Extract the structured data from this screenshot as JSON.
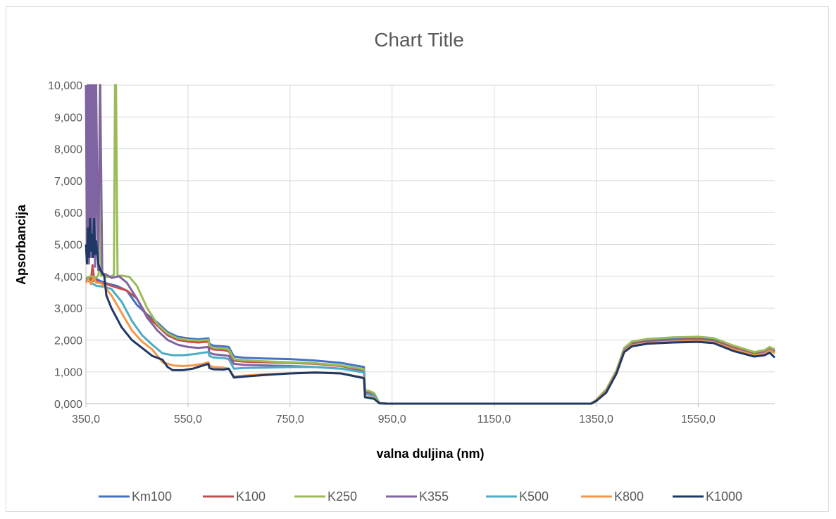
{
  "chart_data": {
    "type": "line",
    "title": "Chart Title",
    "xlabel": "valna duljina (nm)",
    "ylabel": "Apsorbancija",
    "xlim": [
      350,
      1700
    ],
    "ylim": [
      0,
      10
    ],
    "x_ticks": [
      350,
      550,
      750,
      950,
      1150,
      1350,
      1550
    ],
    "x_tick_labels": [
      "350,0",
      "550,0",
      "750,0",
      "950,0",
      "1150,0",
      "1350,0",
      "1550,0"
    ],
    "y_ticks": [
      0,
      1,
      2,
      3,
      4,
      5,
      6,
      7,
      8,
      9,
      10
    ],
    "y_tick_labels": [
      "0,000",
      "1,000",
      "2,000",
      "3,000",
      "4,000",
      "5,000",
      "6,000",
      "7,000",
      "8,000",
      "9,000",
      "10,000"
    ],
    "grid": "vertical and horizontal",
    "legend_position": "bottom",
    "series": [
      {
        "name": "Km100",
        "color": "#4472c4",
        "x": [
          350,
          355,
          360,
          365,
          370,
          378,
          390,
          410,
          430,
          450,
          470,
          490,
          510,
          530,
          550,
          570,
          590,
          592,
          600,
          620,
          630,
          640,
          660,
          700,
          750,
          800,
          850,
          895,
          897,
          905,
          915,
          925,
          940,
          1100,
          1340,
          1350,
          1370,
          1390,
          1405,
          1420,
          1450,
          1500,
          1550,
          1580,
          1620,
          1660,
          1680,
          1690,
          1700
        ],
        "y": [
          3.9,
          3.95,
          3.9,
          3.85,
          3.92,
          3.85,
          3.78,
          3.7,
          3.55,
          3.1,
          2.8,
          2.55,
          2.25,
          2.1,
          2.05,
          2.02,
          2.05,
          1.88,
          1.82,
          1.8,
          1.78,
          1.48,
          1.44,
          1.42,
          1.4,
          1.35,
          1.28,
          1.15,
          0.38,
          0.35,
          0.3,
          0.02,
          0,
          0,
          0,
          0.1,
          0.4,
          1.0,
          1.7,
          1.9,
          1.98,
          2.02,
          2.05,
          2.0,
          1.78,
          1.6,
          1.65,
          1.75,
          1.68
        ]
      },
      {
        "name": "K100",
        "color": "#c0504d",
        "x": [
          350,
          355,
          360,
          363,
          366,
          370,
          378,
          390,
          410,
          430,
          450,
          470,
          490,
          510,
          530,
          550,
          570,
          590,
          592,
          600,
          620,
          630,
          640,
          660,
          700,
          750,
          800,
          850,
          895,
          897,
          905,
          915,
          925,
          940,
          1100,
          1340,
          1350,
          1370,
          1390,
          1405,
          1420,
          1450,
          1500,
          1550,
          1580,
          1620,
          1660,
          1680,
          1690,
          1700
        ],
        "y": [
          3.85,
          3.92,
          3.88,
          4.35,
          3.9,
          3.85,
          3.8,
          3.75,
          3.65,
          3.55,
          3.3,
          2.75,
          2.45,
          2.15,
          2.0,
          1.95,
          1.92,
          1.95,
          1.75,
          1.7,
          1.68,
          1.65,
          1.35,
          1.32,
          1.3,
          1.28,
          1.25,
          1.18,
          1.05,
          0.35,
          0.33,
          0.28,
          0.02,
          0,
          0,
          0,
          0.1,
          0.4,
          1.0,
          1.7,
          1.88,
          1.95,
          2.0,
          2.02,
          1.98,
          1.75,
          1.58,
          1.62,
          1.72,
          1.64
        ]
      },
      {
        "name": "K250",
        "color": "#9bbb59",
        "x": [
          350,
          360,
          370,
          375,
          377,
          378,
          380,
          384,
          390,
          400,
          405,
          407,
          409,
          412,
          420,
          435,
          450,
          470,
          490,
          510,
          530,
          550,
          570,
          590,
          592,
          600,
          620,
          630,
          640,
          660,
          700,
          750,
          800,
          850,
          895,
          897,
          905,
          915,
          925,
          940,
          1100,
          1340,
          1350,
          1370,
          1390,
          1405,
          1420,
          1450,
          1500,
          1550,
          1580,
          1620,
          1660,
          1680,
          1690,
          1700
        ],
        "y": [
          3.95,
          4.0,
          3.95,
          4.05,
          10,
          10,
          4.0,
          4.05,
          3.98,
          4.0,
          4.05,
          10,
          10,
          4.0,
          4.02,
          3.98,
          3.7,
          3.0,
          2.5,
          2.2,
          2.05,
          2.0,
          1.98,
          2.0,
          1.82,
          1.75,
          1.73,
          1.7,
          1.4,
          1.36,
          1.33,
          1.3,
          1.27,
          1.2,
          1.08,
          0.42,
          0.4,
          0.33,
          0.02,
          0,
          0,
          0,
          0.12,
          0.45,
          1.05,
          1.75,
          1.95,
          2.03,
          2.08,
          2.1,
          2.06,
          1.82,
          1.62,
          1.68,
          1.78,
          1.7
        ]
      },
      {
        "name": "K355",
        "color": "#8064a2",
        "x": [
          350,
          352,
          354,
          356,
          358,
          360,
          362,
          364,
          366,
          368,
          370,
          374,
          378,
          382,
          390,
          400,
          415,
          430,
          450,
          470,
          490,
          510,
          530,
          550,
          570,
          590,
          592,
          600,
          620,
          630,
          640,
          660,
          700,
          750,
          800,
          850,
          895,
          897,
          905,
          915,
          925,
          940,
          1100,
          1340,
          1350,
          1370,
          1390,
          1405,
          1420,
          1450,
          1500,
          1550,
          1580,
          1620,
          1660,
          1680,
          1690,
          1700
        ],
        "y": [
          10,
          4.5,
          10,
          4.4,
          10,
          4.6,
          10,
          5.0,
          10,
          4.3,
          10,
          4.2,
          10,
          4.1,
          4.05,
          3.95,
          4.0,
          3.8,
          3.3,
          2.7,
          2.3,
          2.0,
          1.85,
          1.78,
          1.75,
          1.78,
          1.6,
          1.55,
          1.52,
          1.5,
          1.25,
          1.22,
          1.2,
          1.18,
          1.15,
          1.1,
          1.0,
          0.32,
          0.3,
          0.25,
          0.02,
          0,
          0,
          0,
          0.1,
          0.4,
          1.0,
          1.68,
          1.86,
          1.93,
          1.98,
          2.0,
          1.96,
          1.72,
          1.55,
          1.6,
          1.7,
          1.62
        ]
      },
      {
        "name": "K500",
        "color": "#4bacc6",
        "x": [
          350,
          355,
          360,
          365,
          370,
          380,
          390,
          400,
          420,
          440,
          460,
          480,
          500,
          520,
          540,
          560,
          580,
          590,
          592,
          600,
          620,
          630,
          640,
          660,
          700,
          750,
          800,
          850,
          895,
          897,
          905,
          915,
          925,
          940,
          1100,
          1340,
          1350,
          1370,
          1390,
          1405,
          1420,
          1450,
          1500,
          1550,
          1580,
          1620,
          1660,
          1680,
          1690,
          1700
        ],
        "y": [
          3.9,
          3.85,
          3.8,
          3.75,
          3.7,
          3.68,
          3.65,
          3.6,
          3.2,
          2.6,
          2.15,
          1.85,
          1.58,
          1.52,
          1.52,
          1.55,
          1.6,
          1.62,
          1.5,
          1.45,
          1.43,
          1.4,
          1.1,
          1.12,
          1.13,
          1.15,
          1.15,
          1.1,
          0.98,
          0.3,
          0.28,
          0.24,
          0.02,
          0,
          0,
          0,
          0.1,
          0.38,
          0.98,
          1.65,
          1.83,
          1.9,
          1.95,
          1.97,
          1.93,
          1.7,
          1.52,
          1.57,
          1.67,
          1.59
        ]
      },
      {
        "name": "K800",
        "color": "#f79646",
        "x": [
          350,
          355,
          360,
          365,
          370,
          380,
          390,
          400,
          420,
          440,
          460,
          480,
          500,
          520,
          540,
          560,
          580,
          590,
          592,
          600,
          620,
          630,
          640,
          660,
          700,
          750,
          800,
          850,
          895,
          897,
          905,
          915,
          925,
          940,
          1100,
          1340,
          1350,
          1370,
          1390,
          1405,
          1420,
          1450,
          1500,
          1550,
          1580,
          1620,
          1660,
          1680,
          1690,
          1700
        ],
        "y": [
          3.8,
          3.9,
          3.75,
          3.95,
          3.8,
          3.78,
          3.6,
          3.4,
          2.85,
          2.3,
          1.95,
          1.7,
          1.3,
          1.2,
          1.18,
          1.2,
          1.25,
          1.3,
          1.2,
          1.15,
          1.13,
          1.1,
          0.85,
          0.88,
          0.92,
          0.95,
          0.97,
          0.95,
          0.82,
          0.22,
          0.2,
          0.18,
          0.02,
          0,
          0,
          0,
          0.1,
          0.38,
          0.98,
          1.65,
          1.83,
          1.9,
          1.95,
          1.97,
          1.93,
          1.7,
          1.52,
          1.57,
          1.67,
          1.59
        ]
      },
      {
        "name": "K1000",
        "color": "#1f3864",
        "x": [
          350,
          352,
          354,
          356,
          358,
          360,
          362,
          364,
          366,
          368,
          370,
          374,
          378,
          382,
          386,
          390,
          400,
          420,
          440,
          460,
          480,
          500,
          510,
          520,
          540,
          560,
          580,
          590,
          592,
          600,
          620,
          630,
          640,
          660,
          700,
          750,
          800,
          850,
          895,
          897,
          905,
          915,
          925,
          940,
          1100,
          1340,
          1350,
          1370,
          1390,
          1405,
          1420,
          1450,
          1500,
          1550,
          1580,
          1620,
          1660,
          1680,
          1690,
          1700
        ],
        "y": [
          5.0,
          4.4,
          5.5,
          4.6,
          5.8,
          4.8,
          5.3,
          4.6,
          5.8,
          4.7,
          5.1,
          4.4,
          4.2,
          4.1,
          4.0,
          3.4,
          3.0,
          2.4,
          2.0,
          1.75,
          1.5,
          1.38,
          1.15,
          1.05,
          1.05,
          1.1,
          1.2,
          1.25,
          1.12,
          1.08,
          1.07,
          1.1,
          0.82,
          0.85,
          0.9,
          0.95,
          0.98,
          0.95,
          0.8,
          0.2,
          0.18,
          0.15,
          0.01,
          0,
          0,
          0,
          0.08,
          0.35,
          0.95,
          1.62,
          1.8,
          1.88,
          1.92,
          1.94,
          1.9,
          1.65,
          1.48,
          1.52,
          1.6,
          1.45
        ]
      }
    ]
  }
}
